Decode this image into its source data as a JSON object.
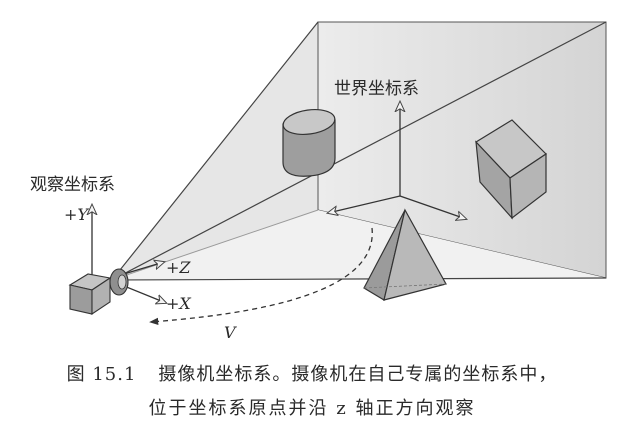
{
  "labels": {
    "world_coordinate_system": "世界坐标系",
    "camera_coordinate_system": "观察坐标系",
    "axis_y": "+Y",
    "axis_z": "+Z",
    "axis_x": "+X",
    "view_direction": "V"
  },
  "caption": {
    "figure_number": "图 15.1",
    "line1": "摄像机坐标系。摄像机在自己专属的坐标系中，",
    "line2": "位于坐标系原点并沿 z 轴正方向观察"
  },
  "colors": {
    "frustum_face": "#d9d9d9",
    "frustum_face_light": "#ececec",
    "solid_fill": "#a9a9a9",
    "line": "#333333"
  }
}
